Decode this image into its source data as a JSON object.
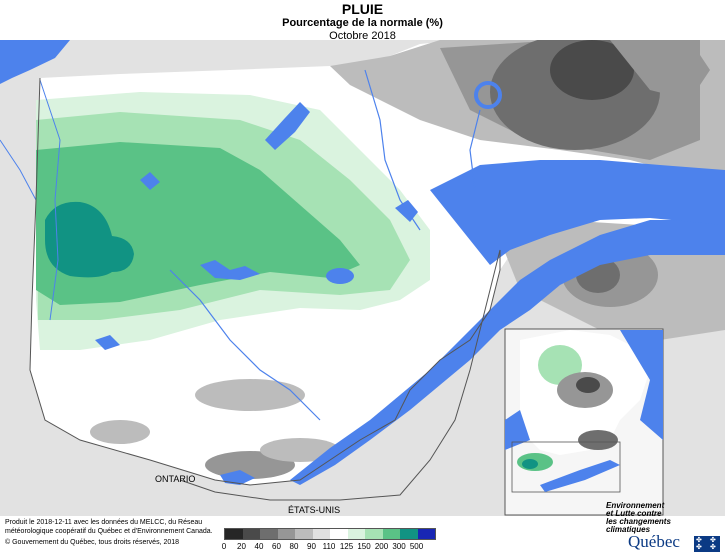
{
  "header": {
    "title": "PLUIE",
    "subtitle": "Pourcentage de la normale (%)",
    "period": "Octobre 2018"
  },
  "map": {
    "labels": {
      "ontario": "ONTARIO",
      "usa": "ÉTATS-UNIS"
    },
    "colors": {
      "water": "#4d82ec",
      "land_outside": "#e2e2e2",
      "land_inside": "#ffffff",
      "border": "#555555"
    }
  },
  "credits": {
    "produced": "Produit le 2018-12-11 avec les données du MELCC, du Réseau météorologique coopératif du Québec et d'Environnement Canada.",
    "copyright": "© Gouvernement du Québec, tous droits réservés, 2018"
  },
  "legend": {
    "labels": [
      "0",
      "20",
      "40",
      "60",
      "80",
      "90",
      "110",
      "125",
      "150",
      "200",
      "300",
      "500"
    ],
    "colors": [
      "#262626",
      "#4a4a4a",
      "#6e6e6e",
      "#969696",
      "#bcbcbc",
      "#e0e0e0",
      "#ffffff",
      "#daf3df",
      "#a6e2b4",
      "#5ac286",
      "#119383",
      "#1826b4"
    ]
  },
  "logo": {
    "org_line1": "Environnement",
    "org_line2": "et Lutte contre",
    "org_line3": "les changements",
    "org_line4": "climatiques",
    "brand": "Québec"
  }
}
